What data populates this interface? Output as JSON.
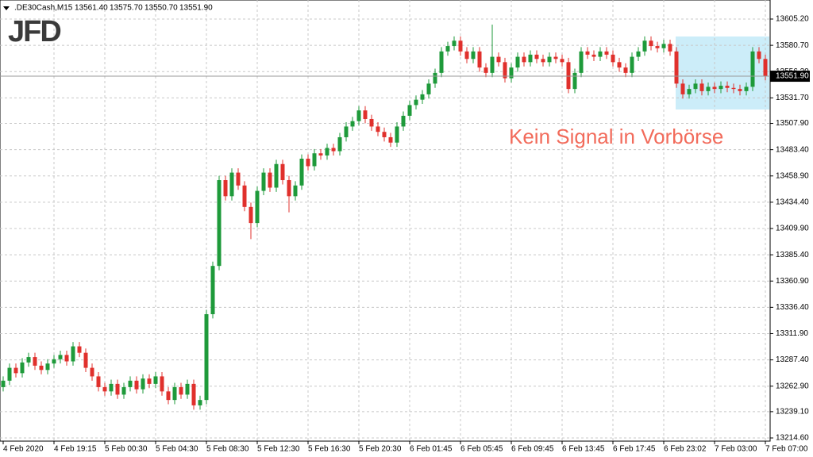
{
  "chart_data": {
    "type": "candlestick",
    "symbol": ".DE30Cash,M15",
    "header_prices": [
      "13561.40",
      "13575.70",
      "13550.70",
      "13551.90"
    ],
    "logo": "JFD",
    "annotation": "Kein Signal in Vorbörse",
    "up_color": "#1e9a3a",
    "down_color": "#e0302c",
    "grid": true,
    "last_price": {
      "value": 13551.9,
      "label": "13551.90"
    },
    "ylim": [
      13214.6,
      13605.2
    ],
    "yticks": [
      {
        "value": 13214.6,
        "label": "13214.60"
      },
      {
        "value": 13239.1,
        "label": "13239.10"
      },
      {
        "value": 13262.9,
        "label": "13262.90"
      },
      {
        "value": 13287.4,
        "label": "13287.40"
      },
      {
        "value": 13311.9,
        "label": "13311.90"
      },
      {
        "value": 13336.4,
        "label": "13336.40"
      },
      {
        "value": 13360.9,
        "label": "13360.90"
      },
      {
        "value": 13385.4,
        "label": "13385.40"
      },
      {
        "value": 13409.9,
        "label": "13409.90"
      },
      {
        "value": 13434.4,
        "label": "13434.40"
      },
      {
        "value": 13458.9,
        "label": "13458.90"
      },
      {
        "value": 13483.4,
        "label": "13483.40"
      },
      {
        "value": 13507.9,
        "label": "13507.90"
      },
      {
        "value": 13531.7,
        "label": "13531.70"
      },
      {
        "value": 13556.2,
        "label": "13556.20"
      },
      {
        "value": 13580.7,
        "label": "13580.70"
      },
      {
        "value": 13605.2,
        "label": "13605.20"
      }
    ],
    "categories": [
      "4 Feb 2020",
      null,
      null,
      null,
      null,
      null,
      null,
      null,
      "4 Feb 19:15",
      null,
      null,
      null,
      null,
      null,
      null,
      null,
      "5 Feb 00:30",
      null,
      null,
      null,
      null,
      null,
      null,
      null,
      "5 Feb 04:30",
      null,
      null,
      null,
      null,
      null,
      null,
      null,
      "5 Feb 08:30",
      null,
      null,
      null,
      null,
      null,
      null,
      null,
      "5 Feb 12:30",
      null,
      null,
      null,
      null,
      null,
      null,
      null,
      "5 Feb 16:30",
      null,
      null,
      null,
      null,
      null,
      null,
      null,
      "5 Feb 20:30",
      null,
      null,
      null,
      null,
      null,
      null,
      null,
      "6 Feb 01:45",
      null,
      null,
      null,
      null,
      null,
      null,
      null,
      "6 Feb 05:45",
      null,
      null,
      null,
      null,
      null,
      null,
      null,
      "6 Feb 09:45",
      null,
      null,
      null,
      null,
      null,
      null,
      null,
      "6 Feb 13:45",
      null,
      null,
      null,
      null,
      null,
      null,
      null,
      "6 Feb 17:45",
      null,
      null,
      null,
      null,
      null,
      null,
      null,
      "6 Feb 23:02",
      null,
      null,
      null,
      null,
      null,
      null,
      null,
      "7 Feb 03:00",
      null,
      null,
      null,
      null,
      null,
      null,
      null,
      "7 Feb 07:00"
    ],
    "open": [
      13262,
      13268,
      13280,
      13275,
      13285,
      13290,
      13282,
      13278,
      13284,
      13288,
      13292,
      13286,
      13300,
      13294,
      13280,
      13272,
      13262,
      13258,
      13265,
      13255,
      13262,
      13268,
      13260,
      13270,
      13265,
      13272,
      13258,
      13250,
      13262,
      13255,
      13265,
      13245,
      13250,
      13330,
      13375,
      13455,
      13440,
      13462,
      13450,
      13430,
      13415,
      13445,
      13462,
      13448,
      13470,
      13455,
      13440,
      13450,
      13475,
      13468,
      13480,
      13478,
      13485,
      13482,
      13495,
      13505,
      13510,
      13520,
      13512,
      13505,
      13500,
      13495,
      13490,
      13505,
      13515,
      13525,
      13530,
      13535,
      13545,
      13555,
      13575,
      13580,
      13585,
      13575,
      13568,
      13575,
      13560,
      13555,
      13570,
      13565,
      13550,
      13560,
      13570,
      13565,
      13572,
      13568,
      13565,
      13570,
      13568,
      13565,
      13540,
      13555,
      13575,
      13572,
      13570,
      13575,
      13572,
      13565,
      13560,
      13555,
      13570,
      13575,
      13585,
      13580,
      13578,
      13582,
      13575,
      13545,
      13535,
      13540,
      13545,
      13538,
      13542,
      13540,
      13543,
      13541,
      13540,
      13538,
      13542,
      13575,
      13568
    ],
    "high": [
      13272,
      13284,
      13284,
      13289,
      13294,
      13294,
      13286,
      13288,
      13292,
      13296,
      13296,
      13304,
      13304,
      13298,
      13284,
      13276,
      13266,
      13269,
      13269,
      13266,
      13272,
      13272,
      13274,
      13274,
      13276,
      13276,
      13262,
      13266,
      13266,
      13269,
      13269,
      13254,
      13334,
      13379,
      13459,
      13459,
      13466,
      13466,
      13454,
      13434,
      13449,
      13466,
      13466,
      13474,
      13474,
      13459,
      13454,
      13479,
      13479,
      13484,
      13484,
      13489,
      13489,
      13499,
      13509,
      13514,
      13524,
      13524,
      13516,
      13509,
      13504,
      13499,
      13509,
      13519,
      13529,
      13534,
      13539,
      13549,
      13559,
      13579,
      13584,
      13589,
      13589,
      13579,
      13579,
      13579,
      13564,
      13600,
      13574,
      13569,
      13564,
      13574,
      13574,
      13576,
      13576,
      13572,
      13574,
      13574,
      13572,
      13569,
      13559,
      13579,
      13579,
      13576,
      13579,
      13579,
      13576,
      13569,
      13564,
      13574,
      13579,
      13589,
      13589,
      13584,
      13586,
      13586,
      13579,
      13549,
      13544,
      13549,
      13549,
      13546,
      13546,
      13547,
      13547,
      13545,
      13544,
      13546,
      13579,
      13579,
      13572
    ],
    "low": [
      13258,
      13264,
      13271,
      13271,
      13281,
      13278,
      13274,
      13274,
      13280,
      13284,
      13282,
      13282,
      13290,
      13276,
      13268,
      13258,
      13254,
      13254,
      13251,
      13251,
      13258,
      13256,
      13256,
      13261,
      13261,
      13254,
      13246,
      13246,
      13251,
      13251,
      13241,
      13241,
      13246,
      13326,
      13371,
      13436,
      13436,
      13446,
      13426,
      13400,
      13411,
      13441,
      13444,
      13444,
      13451,
      13425,
      13436,
      13446,
      13464,
      13464,
      13474,
      13474,
      13478,
      13478,
      13491,
      13501,
      13506,
      13508,
      13501,
      13496,
      13491,
      13486,
      13486,
      13501,
      13511,
      13521,
      13526,
      13531,
      13541,
      13551,
      13571,
      13576,
      13571,
      13564,
      13564,
      13556,
      13551,
      13551,
      13561,
      13546,
      13546,
      13556,
      13561,
      13561,
      13564,
      13561,
      13561,
      13564,
      13561,
      13536,
      13536,
      13551,
      13568,
      13566,
      13566,
      13568,
      13561,
      13556,
      13551,
      13551,
      13566,
      13571,
      13576,
      13574,
      13574,
      13571,
      13541,
      13531,
      13531,
      13536,
      13534,
      13534,
      13536,
      13536,
      13537,
      13536,
      13534,
      13534,
      13538,
      13564,
      13548
    ],
    "close": [
      13268,
      13280,
      13275,
      13285,
      13290,
      13282,
      13278,
      13284,
      13288,
      13292,
      13286,
      13300,
      13294,
      13280,
      13272,
      13262,
      13258,
      13265,
      13255,
      13262,
      13268,
      13260,
      13270,
      13265,
      13272,
      13258,
      13250,
      13262,
      13255,
      13265,
      13245,
      13250,
      13330,
      13375,
      13455,
      13440,
      13462,
      13450,
      13430,
      13415,
      13445,
      13462,
      13448,
      13470,
      13455,
      13440,
      13450,
      13475,
      13468,
      13480,
      13478,
      13485,
      13482,
      13495,
      13505,
      13510,
      13520,
      13512,
      13505,
      13500,
      13495,
      13490,
      13505,
      13515,
      13525,
      13530,
      13535,
      13545,
      13555,
      13575,
      13580,
      13585,
      13575,
      13568,
      13575,
      13560,
      13555,
      13570,
      13565,
      13550,
      13560,
      13570,
      13565,
      13572,
      13568,
      13565,
      13570,
      13568,
      13565,
      13540,
      13555,
      13575,
      13572,
      13570,
      13575,
      13572,
      13565,
      13560,
      13555,
      13570,
      13575,
      13585,
      13580,
      13578,
      13582,
      13575,
      13545,
      13535,
      13540,
      13545,
      13538,
      13542,
      13540,
      13543,
      13541,
      13540,
      13538,
      13542,
      13575,
      13568,
      13552
    ]
  }
}
